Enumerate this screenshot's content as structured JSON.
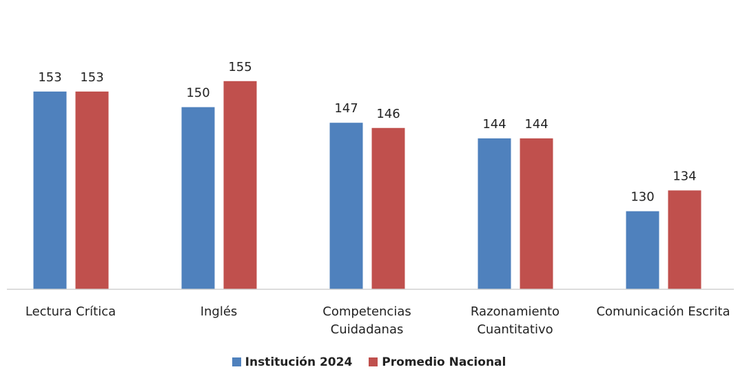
{
  "chart_data": {
    "type": "bar",
    "categories": [
      "Lectura Crítica",
      "Inglés",
      "Competencias\nCuidadanas",
      "Razonamiento\nCuantitativo",
      "Comunicación Escrita"
    ],
    "series": [
      {
        "name": "Institución 2024",
        "color": "#4f81bd",
        "values": [
          153,
          150,
          147,
          144,
          130
        ]
      },
      {
        "name": "Promedio Nacional",
        "color": "#c0504d",
        "values": [
          153,
          155,
          146,
          144,
          134
        ]
      }
    ],
    "ylim": [
      115,
      160
    ]
  }
}
